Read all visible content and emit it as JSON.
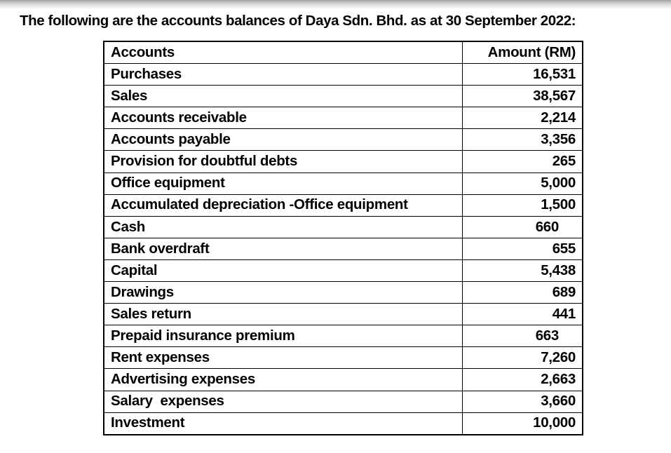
{
  "page": {
    "title": "The following are the accounts balances of Daya Sdn. Bhd. as at 30 September 2022:"
  },
  "table": {
    "headers": [
      "Accounts",
      "Amount (RM)"
    ],
    "rows": [
      {
        "account": "Purchases",
        "amount": "16,531"
      },
      {
        "account": "Sales",
        "amount": "38,567"
      },
      {
        "account": "Accounts receivable",
        "amount": "2,214"
      },
      {
        "account": "Accounts payable",
        "amount": "3,356"
      },
      {
        "account": "Provision for doubtful debts",
        "amount": "265"
      },
      {
        "account": "Office equipment",
        "amount": "5,000"
      },
      {
        "account": "Accumulated depreciation -Office equipment",
        "amount": "1,500"
      },
      {
        "account": "Cash",
        "amount": "660",
        "amount_offset": true
      },
      {
        "account": "Bank overdraft",
        "amount": "655"
      },
      {
        "account": "Capital",
        "amount": "5,438"
      },
      {
        "account": "Drawings",
        "amount": "689"
      },
      {
        "account": "Sales return",
        "amount": "441"
      },
      {
        "account": "Prepaid insurance premium",
        "amount": "663",
        "amount_offset": true
      },
      {
        "account": "Rent expenses",
        "amount": "7,260"
      },
      {
        "account": "Advertising expenses",
        "amount": "2,663"
      },
      {
        "account": "Salary  expenses",
        "amount": "3,660"
      },
      {
        "account": "Investment",
        "amount": "10,000"
      }
    ]
  }
}
